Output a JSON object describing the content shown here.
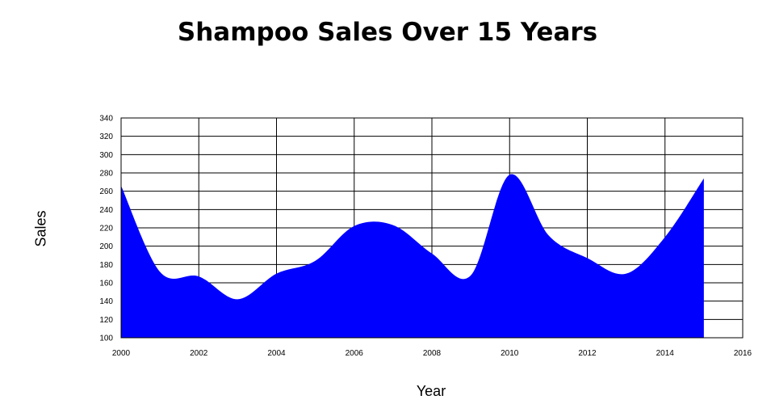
{
  "chart_data": {
    "type": "area",
    "title": "Shampoo Sales Over 15 Years",
    "xlabel": "Year",
    "ylabel": "Sales",
    "x": [
      2000,
      2001,
      2002,
      2003,
      2004,
      2005,
      2006,
      2007,
      2008,
      2009,
      2010,
      2011,
      2012,
      2013,
      2014,
      2015
    ],
    "values": [
      266,
      172,
      167,
      142,
      170,
      184,
      222,
      223,
      192,
      168,
      278,
      212,
      187,
      170,
      210,
      274
    ],
    "xlim": [
      2000,
      2016
    ],
    "ylim": [
      100,
      340
    ],
    "xticks": [
      2000,
      2002,
      2004,
      2006,
      2008,
      2010,
      2012,
      2014,
      2016
    ],
    "yticks": [
      100,
      120,
      140,
      160,
      180,
      200,
      220,
      240,
      260,
      280,
      300,
      320,
      340
    ],
    "grid": true,
    "fill_color": "#0000ff"
  }
}
